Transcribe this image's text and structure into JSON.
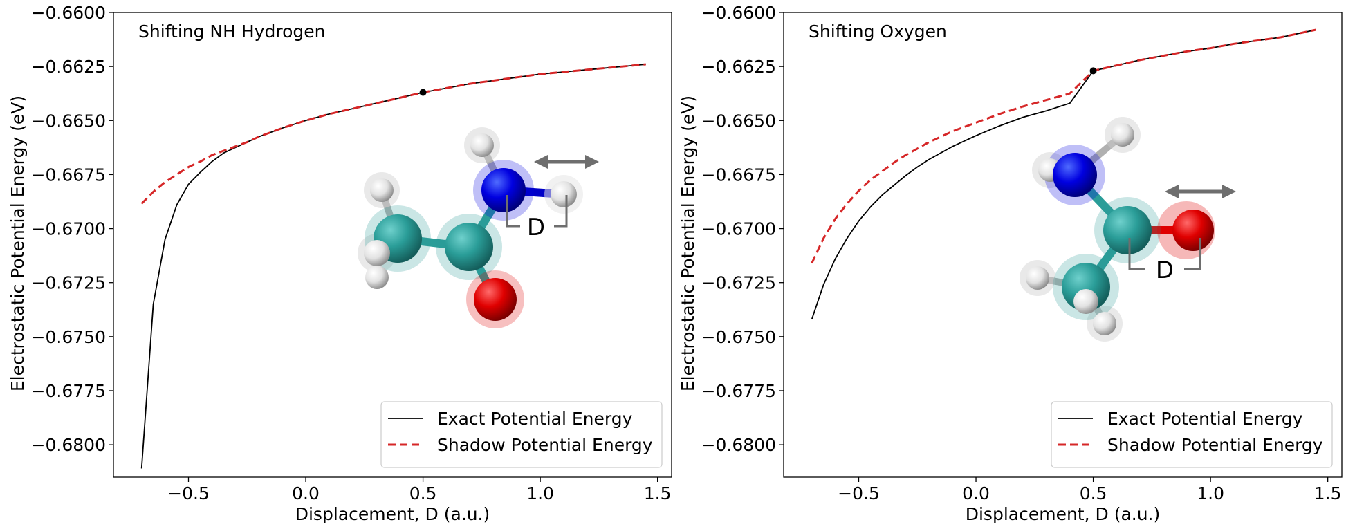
{
  "chart_data": [
    {
      "type": "line",
      "title": "Shifting NH Hydrogen",
      "xlabel": "Displacement, D (a.u.)",
      "ylabel": "Electrostatic Potential Energy (eV)",
      "xlim": [
        -0.82,
        1.56
      ],
      "ylim": [
        -0.6815,
        -0.66
      ],
      "xticks": [
        -0.5,
        0.0,
        0.5,
        1.0,
        1.5
      ],
      "xtick_labels": [
        "−0.5",
        "0.0",
        "0.5",
        "1.0",
        "1.5"
      ],
      "yticks": [
        -0.66,
        -0.6625,
        -0.665,
        -0.6675,
        -0.67,
        -0.6725,
        -0.675,
        -0.6775,
        -0.68
      ],
      "ytick_labels": [
        "−0.6600",
        "−0.6625",
        "−0.6650",
        "−0.6675",
        "−0.6700",
        "−0.6725",
        "−0.6750",
        "−0.6775",
        "−0.6800"
      ],
      "legend_position": "lower-right",
      "series": [
        {
          "name": "Exact Potential Energy",
          "color": "#000000",
          "style": "solid",
          "x": [
            -0.7,
            -0.65,
            -0.6,
            -0.55,
            -0.5,
            -0.45,
            -0.4,
            -0.35,
            -0.3,
            -0.25,
            -0.2,
            -0.1,
            0.0,
            0.1,
            0.2,
            0.3,
            0.4,
            0.5,
            0.6,
            0.7,
            0.8,
            0.9,
            1.0,
            1.1,
            1.2,
            1.3,
            1.45
          ],
          "y": [
            -0.6811,
            -0.6735,
            -0.6705,
            -0.6689,
            -0.66795,
            -0.6674,
            -0.6669,
            -0.6665,
            -0.66625,
            -0.666,
            -0.66575,
            -0.66535,
            -0.665,
            -0.6647,
            -0.66445,
            -0.6642,
            -0.66395,
            -0.6637,
            -0.6635,
            -0.6633,
            -0.66315,
            -0.663,
            -0.66285,
            -0.66275,
            -0.66265,
            -0.66255,
            -0.6624
          ]
        },
        {
          "name": "Shadow Potential Energy",
          "color": "#d62728",
          "style": "dashed",
          "x": [
            -0.7,
            -0.65,
            -0.6,
            -0.55,
            -0.5,
            -0.45,
            -0.4,
            -0.35,
            -0.3,
            -0.25,
            -0.2,
            -0.1,
            0.0,
            0.1,
            0.2,
            0.3,
            0.4,
            0.5,
            0.6,
            0.7,
            0.8,
            0.9,
            1.0,
            1.1,
            1.2,
            1.3,
            1.45
          ],
          "y": [
            -0.66885,
            -0.6683,
            -0.66785,
            -0.6675,
            -0.66715,
            -0.6669,
            -0.6666,
            -0.6664,
            -0.6662,
            -0.666,
            -0.66575,
            -0.66535,
            -0.665,
            -0.6647,
            -0.66445,
            -0.6642,
            -0.66395,
            -0.6637,
            -0.6635,
            -0.6633,
            -0.66315,
            -0.663,
            -0.66285,
            -0.66275,
            -0.66265,
            -0.66255,
            -0.6624
          ]
        }
      ],
      "marker": {
        "x": 0.5,
        "y": -0.6637,
        "color": "#000000"
      },
      "annotation": {
        "label": "D"
      }
    },
    {
      "type": "line",
      "title": "Shifting Oxygen",
      "xlabel": "Displacement, D (a.u.)",
      "ylabel": "Electrostatic Potential Energy (eV)",
      "xlim": [
        -0.82,
        1.56
      ],
      "ylim": [
        -0.6815,
        -0.66
      ],
      "xticks": [
        -0.5,
        0.0,
        0.5,
        1.0,
        1.5
      ],
      "xtick_labels": [
        "−0.5",
        "0.0",
        "0.5",
        "1.0",
        "1.5"
      ],
      "yticks": [
        -0.66,
        -0.6625,
        -0.665,
        -0.6675,
        -0.67,
        -0.6725,
        -0.675,
        -0.6775,
        -0.68
      ],
      "ytick_labels": [
        "−0.6600",
        "−0.6625",
        "−0.6650",
        "−0.6675",
        "−0.6700",
        "−0.6725",
        "−0.6750",
        "−0.6775",
        "−0.6800"
      ],
      "legend_position": "lower-right",
      "series": [
        {
          "name": "Exact Potential Energy",
          "color": "#000000",
          "style": "solid",
          "x": [
            -0.7,
            -0.65,
            -0.6,
            -0.55,
            -0.5,
            -0.45,
            -0.4,
            -0.35,
            -0.3,
            -0.25,
            -0.2,
            -0.1,
            0.0,
            0.1,
            0.2,
            0.3,
            0.4,
            0.5,
            0.6,
            0.7,
            0.8,
            0.9,
            1.0,
            1.1,
            1.2,
            1.3,
            1.45
          ],
          "y": [
            -0.6742,
            -0.6726,
            -0.6714,
            -0.67045,
            -0.66965,
            -0.669,
            -0.66845,
            -0.668,
            -0.66755,
            -0.66715,
            -0.6668,
            -0.6662,
            -0.6657,
            -0.66525,
            -0.66485,
            -0.66455,
            -0.6642,
            -0.6627,
            -0.66245,
            -0.6622,
            -0.662,
            -0.6618,
            -0.66165,
            -0.66145,
            -0.6613,
            -0.66115,
            -0.6608
          ]
        },
        {
          "name": "Shadow Potential Energy",
          "color": "#d62728",
          "style": "dashed",
          "x": [
            -0.7,
            -0.65,
            -0.6,
            -0.55,
            -0.5,
            -0.45,
            -0.4,
            -0.35,
            -0.3,
            -0.25,
            -0.2,
            -0.1,
            0.0,
            0.1,
            0.2,
            0.3,
            0.4,
            0.5,
            0.6,
            0.7,
            0.8,
            0.9,
            1.0,
            1.1,
            1.2,
            1.3,
            1.45
          ],
          "y": [
            -0.6716,
            -0.67045,
            -0.66955,
            -0.66885,
            -0.66825,
            -0.66775,
            -0.66735,
            -0.66695,
            -0.6666,
            -0.6663,
            -0.666,
            -0.6655,
            -0.6651,
            -0.6647,
            -0.66435,
            -0.66405,
            -0.66375,
            -0.6627,
            -0.66245,
            -0.6622,
            -0.662,
            -0.6618,
            -0.66165,
            -0.66145,
            -0.6613,
            -0.66115,
            -0.6608
          ]
        }
      ],
      "marker": {
        "x": 0.5,
        "y": -0.6627,
        "color": "#000000"
      },
      "annotation": {
        "label": "D"
      }
    }
  ]
}
